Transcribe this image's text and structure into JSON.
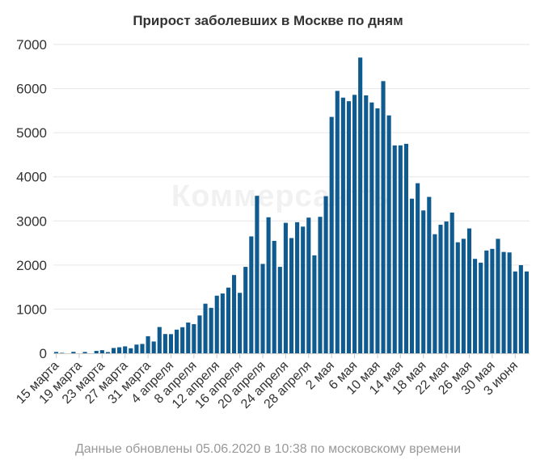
{
  "title": "Прирост заболевших в Москве по дням",
  "watermark": "Коммерсантъ",
  "footer": "Данные обновлены 05.06.2020 в 10:38 по московскому времени",
  "colors": {
    "bar": "#0f5a8e",
    "grid": "#e6e6e6",
    "axis": "#cccccc"
  },
  "chart_data": {
    "type": "bar",
    "title": "Прирост заболевших в Москве по дням",
    "ylim": [
      0,
      7000
    ],
    "yticks": [
      "0",
      "1000",
      "2000",
      "3000",
      "4000",
      "5000",
      "6000",
      "7000"
    ],
    "grid": true,
    "legend": "none",
    "xtick_labels": [
      "15 марта",
      "19 марта",
      "23 марта",
      "27 марта",
      "31 марта",
      "4 апреля",
      "8 апреля",
      "12 апреля",
      "16 апреля",
      "20 апреля",
      "24 апреля",
      "28 апреля",
      "2 мая",
      "6 мая",
      "10 мая",
      "14 мая",
      "18 мая",
      "22 мая",
      "26 мая",
      "30 мая",
      "3 июня"
    ],
    "values": [
      30,
      10,
      0,
      33,
      0,
      30,
      0,
      54,
      71,
      28,
      120,
      136,
      157,
      114,
      197,
      212,
      387,
      267,
      595,
      436,
      434,
      536,
      591,
      697,
      660,
      857,
      1124,
      1030,
      1306,
      1355,
      1489,
      1774,
      1370,
      1959,
      2649,
      3570,
      2026,
      3083,
      2548,
      1959,
      2957,
      2612,
      2971,
      2871,
      3075,
      2220,
      3093,
      3561,
      5358,
      5948,
      5795,
      5714,
      5858,
      6703,
      5846,
      5685,
      5551,
      6169,
      5392,
      4712,
      4713,
      4748,
      3505,
      3855,
      3238,
      3545,
      2699,
      2913,
      2988,
      3190,
      2516,
      2595,
      2830,
      2140,
      2054,
      2330,
      2367,
      2595,
      2297,
      2286,
      1855,
      1998,
      1855
    ]
  }
}
